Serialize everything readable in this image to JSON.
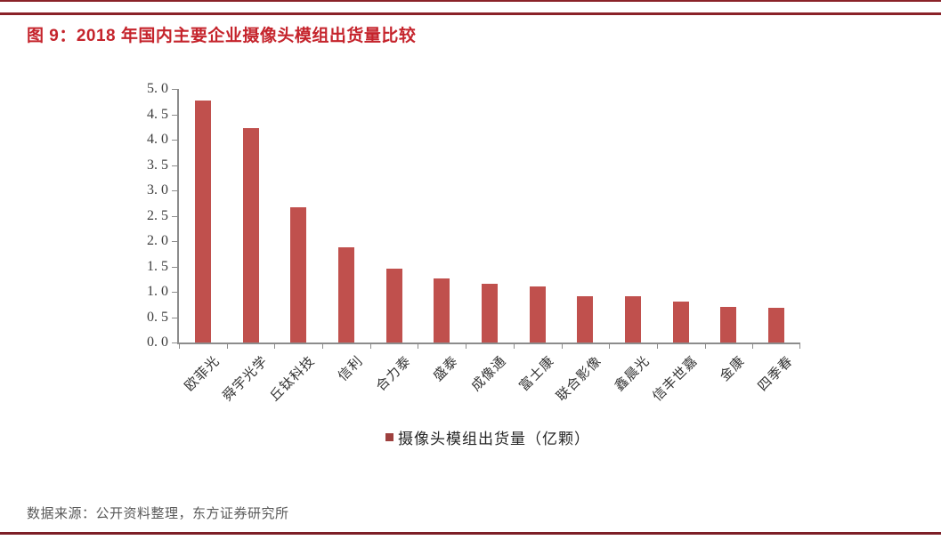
{
  "figure": {
    "title": "图 9：2018 年国内主要企业摄像头模组出货量比较",
    "source_note": "数据来源：公开资料整理，东方证券研究所"
  },
  "colors": {
    "bar": "#c0504d",
    "legend_marker": "#9e403e",
    "title_text": "#c5242c",
    "top_rule": "#8a2228",
    "bottom_rule": "#7d1f27",
    "axis_line": "#8c8c8c",
    "axis_text": "#3f3f3f",
    "source_text": "#595959"
  },
  "chart_data": {
    "type": "bar",
    "title": "图 9：2018 年国内主要企业摄像头模组出货量比较",
    "categories": [
      "欧菲光",
      "舜宇光学",
      "丘钛科技",
      "信利",
      "合力泰",
      "盛泰",
      "成像通",
      "富士康",
      "联合影像",
      "鑫晨光",
      "信丰世嘉",
      "金康",
      "四季春"
    ],
    "values": [
      4.78,
      4.23,
      2.66,
      1.87,
      1.45,
      1.26,
      1.16,
      1.1,
      0.92,
      0.91,
      0.81,
      0.7,
      0.68
    ],
    "series_name": "摄像头模组出货量（亿颗）",
    "xlabel": "",
    "ylabel": "",
    "ylim": [
      0,
      5
    ],
    "ytick_step": 0.5,
    "ytick_labels": [
      "5. 0",
      "4. 5",
      "4. 0",
      "3. 5",
      "3. 0",
      "2. 5",
      "2. 0",
      "1. 5",
      "1. 0",
      "0. 5",
      "0. 0"
    ],
    "grid": false,
    "legend_position": "bottom-center"
  }
}
